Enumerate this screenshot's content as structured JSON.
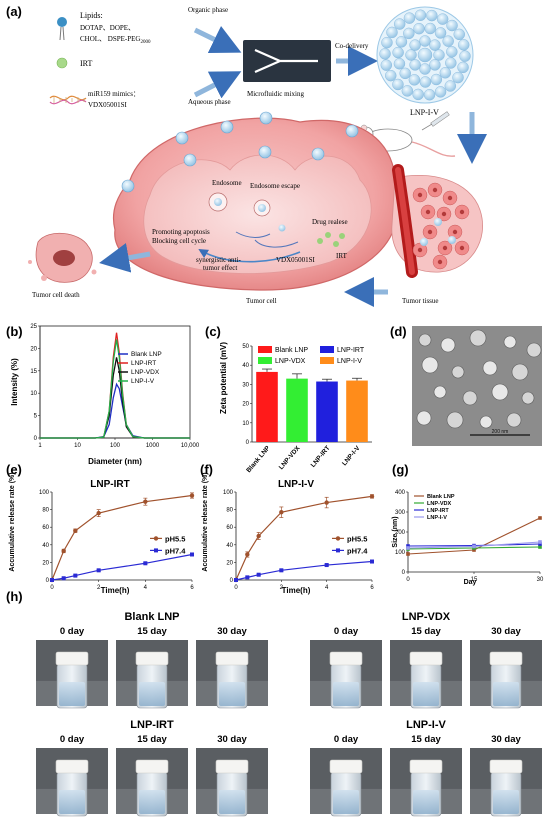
{
  "panel_labels": [
    "(a)",
    "(b)",
    "(c)",
    "(d)",
    "(e)",
    "(f)",
    "(g)",
    "(h)"
  ],
  "schematic": {
    "lipids_title": "Lipids:",
    "lipids_line1": "DOTAP、DOPE、",
    "lipids_line2_main": "CHOL、 DSPE-PEG",
    "lipids_line2_sub": "2000",
    "irt": "IRT",
    "mimics_line1": "miR159 mimics：",
    "mimics_line2": "VDX05001SI",
    "organic_phase": "Organic phase",
    "aqueous_phase": "Aqueous phase",
    "microfluidic": "Microfluidic mixing",
    "co_delivery": "Co-delivery",
    "lnp_iv": "LNP-I-V",
    "endosome": "Endosome",
    "endosome_escape": "Endosome escape",
    "drug_release": "Drug realese",
    "promoting_1": "Promoting apoptosis",
    "promoting_2": "Blocking cell cycle",
    "synergistic_1": "synergistic anti-",
    "synergistic_2": "tumor effect",
    "vdx": "VDX05001SI",
    "irt_in_cell": "IRT",
    "tumor_cell_death": "Tumor cell  death",
    "tumor_cell": "Tumor cell",
    "tumor_tissue": "Tumor tissue"
  },
  "micrograph": {
    "scale_bar": "200 nm"
  },
  "photos": {
    "groups": [
      {
        "title": "Blank LNP",
        "days": [
          "0 day",
          "15 day",
          "30 day"
        ]
      },
      {
        "title": "LNP-VDX",
        "days": [
          "0 day",
          "15 day",
          "30 day"
        ]
      },
      {
        "title": "LNP-IRT",
        "days": [
          "0 day",
          "15 day",
          "30 day"
        ]
      },
      {
        "title": "LNP-I-V",
        "days": [
          "0 day",
          "15 day",
          "30 day"
        ]
      }
    ]
  },
  "chart_data": [
    {
      "id": "b",
      "type": "line",
      "xlabel": "Diameter (nm)",
      "ylabel": "Intensity (%)",
      "xscale": "log",
      "xlim": [
        1,
        10000
      ],
      "ylim": [
        0,
        25
      ],
      "xticks": [
        "1",
        "10",
        "100",
        "1000",
        "10,000"
      ],
      "yticks": [
        "0",
        "5",
        "10",
        "15",
        "20",
        "25"
      ],
      "legend_position": "top-right",
      "x": [
        1,
        10,
        30,
        50,
        70,
        90,
        110,
        130,
        160,
        200,
        300,
        600,
        10000
      ],
      "series": [
        {
          "name": "Blank LNP",
          "color": "#1f2fc4",
          "values": [
            0,
            0,
            0,
            0.3,
            3,
            9,
            12,
            11,
            7,
            3,
            0.5,
            0,
            0
          ]
        },
        {
          "name": "LNP-IRT",
          "color": "#e02020",
          "values": [
            0,
            0,
            0,
            0.2,
            6,
            18,
            23.5,
            19,
            10,
            3,
            0.3,
            0,
            0
          ]
        },
        {
          "name": "LNP-VDX",
          "color": "#111111",
          "values": [
            0,
            0,
            0,
            0.2,
            5,
            14,
            18,
            15,
            8,
            2.5,
            0.3,
            0,
            0
          ]
        },
        {
          "name": "LNP-I-V",
          "color": "#22b14c",
          "values": [
            0,
            0,
            0,
            0.2,
            6,
            17,
            22,
            18,
            9.5,
            3,
            0.3,
            0,
            0
          ]
        }
      ]
    },
    {
      "id": "c",
      "type": "bar",
      "ylabel": "Zeta potential (mV)",
      "ylim": [
        0,
        50
      ],
      "yticks": [
        "0",
        "10",
        "20",
        "30",
        "40",
        "50"
      ],
      "categories": [
        "Blank LNP",
        "LNP-VDX",
        "LNP-IRT",
        "LNP-I-V"
      ],
      "values": [
        36.5,
        33,
        31.5,
        32
      ],
      "errors": [
        1.5,
        2.5,
        1.2,
        1.2
      ],
      "colors": [
        "#ff1a1a",
        "#33ee33",
        "#2020dd",
        "#ff8c1a"
      ],
      "legend_position": "top",
      "legend_order": [
        "Blank LNP",
        "LNP-IRT",
        "LNP-VDX",
        "LNP-I-V"
      ]
    },
    {
      "id": "e",
      "type": "line",
      "title": "LNP-IRT",
      "xlabel": "Time(h)",
      "ylabel": "Accumulative release rate (%)",
      "xlim": [
        0,
        6
      ],
      "ylim": [
        0,
        100
      ],
      "xticks": [
        "0",
        "2",
        "4",
        "6"
      ],
      "yticks": [
        "0",
        "20",
        "40",
        "60",
        "80",
        "100"
      ],
      "legend_position": "right",
      "x": [
        0,
        0.5,
        1,
        2,
        4,
        6
      ],
      "series": [
        {
          "name": "pH5.5",
          "color": "#a0522d",
          "values": [
            0,
            33,
            56,
            76,
            89,
            96
          ],
          "errors": [
            0,
            2,
            2,
            4,
            4,
            3
          ]
        },
        {
          "name": "pH7.4",
          "color": "#2b2bd4",
          "values": [
            0,
            2,
            5,
            11,
            19,
            29
          ],
          "errors": [
            0,
            0.5,
            0.8,
            1,
            1,
            1
          ]
        }
      ]
    },
    {
      "id": "f",
      "type": "line",
      "title": "LNP-I-V",
      "xlabel": "Time(h)",
      "ylabel": "Accumulative release rate (%)",
      "xlim": [
        0,
        6
      ],
      "ylim": [
        0,
        100
      ],
      "xticks": [
        "0",
        "2",
        "4",
        "6"
      ],
      "yticks": [
        "0",
        "20",
        "40",
        "60",
        "80",
        "100"
      ],
      "legend_position": "right",
      "x": [
        0,
        0.5,
        1,
        2,
        4,
        6
      ],
      "series": [
        {
          "name": "pH5.5",
          "color": "#a0522d",
          "values": [
            0,
            29,
            50,
            77,
            88,
            95
          ],
          "errors": [
            0,
            3,
            4,
            6,
            6,
            2
          ]
        },
        {
          "name": "pH7.4",
          "color": "#2b2bd4",
          "values": [
            0,
            3,
            6,
            11,
            17,
            21
          ],
          "errors": [
            0,
            0.5,
            0.8,
            1,
            1,
            1
          ]
        }
      ]
    },
    {
      "id": "g",
      "type": "line",
      "xlabel": "Day",
      "ylabel": "Size (nm)",
      "xlim": [
        0,
        30
      ],
      "ylim": [
        0,
        400
      ],
      "xticks": [
        "0",
        "15",
        "30"
      ],
      "yticks": [
        "0",
        "100",
        "200",
        "300",
        "400"
      ],
      "legend_position": "top-left",
      "x": [
        0,
        15,
        30
      ],
      "series": [
        {
          "name": "Blank LNP",
          "color": "#a0522d",
          "values": [
            90,
            110,
            270
          ]
        },
        {
          "name": "LNP-VDX",
          "color": "#33aa33",
          "values": [
            115,
            120,
            125
          ]
        },
        {
          "name": "LNP-IRT",
          "color": "#2b2bd4",
          "values": [
            130,
            132,
            140
          ]
        },
        {
          "name": "LNP-I-V",
          "color": "#9999ee",
          "values": [
            120,
            128,
            150
          ]
        }
      ]
    }
  ]
}
